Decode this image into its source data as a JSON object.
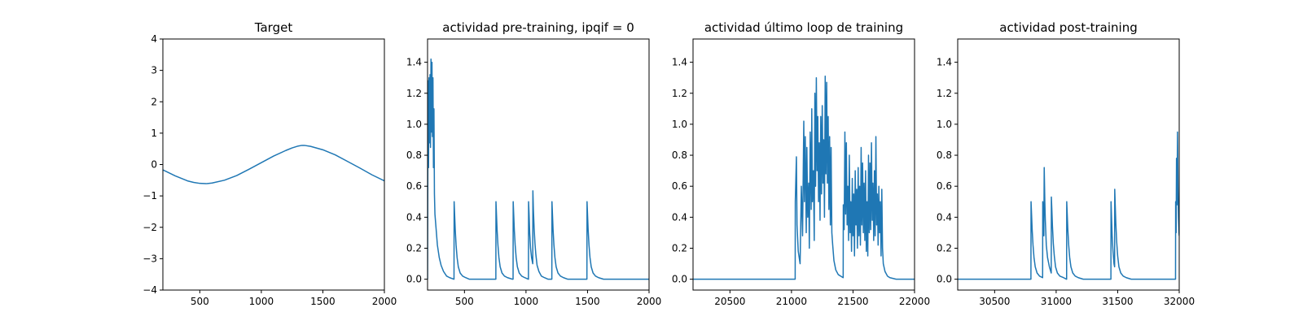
{
  "chart_data": [
    {
      "type": "line",
      "title": "Target",
      "xlim": [
        200,
        2000
      ],
      "ylim": [
        -4,
        4
      ],
      "xticks": [
        500,
        1000,
        1500,
        2000
      ],
      "xtick_labels": [
        "500",
        "1000",
        "1500",
        "2000"
      ],
      "yticks": [
        -4,
        -3,
        -2,
        -1,
        0,
        1,
        2,
        3,
        4
      ],
      "ytick_labels": [
        "−4",
        "−3",
        "−2",
        "−1",
        "0",
        "1",
        "2",
        "3",
        "4"
      ],
      "grid": false,
      "series": [
        {
          "color": "#1f77b4",
          "x": [
            200,
            300,
            400,
            450,
            500,
            550,
            600,
            700,
            800,
            900,
            1000,
            1100,
            1200,
            1250,
            1300,
            1330,
            1350,
            1400,
            1500,
            1600,
            1700,
            1800,
            1900,
            2000
          ],
          "y": [
            -0.17,
            -0.36,
            -0.52,
            -0.57,
            -0.6,
            -0.61,
            -0.59,
            -0.5,
            -0.35,
            -0.15,
            0.06,
            0.27,
            0.45,
            0.53,
            0.59,
            0.61,
            0.61,
            0.58,
            0.47,
            0.31,
            0.1,
            -0.11,
            -0.33,
            -0.52
          ]
        }
      ]
    },
    {
      "type": "line",
      "title": "actividad pre-training, ipqif = 0",
      "xlim": [
        200,
        2000
      ],
      "ylim": [
        -0.07,
        1.55
      ],
      "xticks": [
        500,
        1000,
        1500,
        2000
      ],
      "xtick_labels": [
        "500",
        "1000",
        "1500",
        "2000"
      ],
      "yticks": [
        0,
        0.2,
        0.4,
        0.6,
        0.8,
        1.0,
        1.2,
        1.4
      ],
      "ytick_labels": [
        "0.0",
        "0.2",
        "0.4",
        "0.6",
        "0.8",
        "1.0",
        "1.2",
        "1.4"
      ],
      "grid": false,
      "series": [
        {
          "color": "#1f77b4",
          "x": [
            200,
            204,
            208,
            212,
            216,
            220,
            224,
            228,
            232,
            236,
            240,
            244,
            248,
            252,
            256,
            260,
            270,
            280,
            295,
            310,
            330,
            355,
            380,
            415,
            416,
            420,
            425,
            432,
            440,
            450,
            465,
            485,
            510,
            540,
            580,
            640,
            700,
            755,
            756,
            760,
            765,
            772,
            780,
            790,
            805,
            825,
            850,
            890,
            895,
            896,
            900,
            905,
            912,
            920,
            930,
            945,
            965,
            990,
            1020,
            1021,
            1025,
            1030,
            1037,
            1045,
            1055,
            1056,
            1060,
            1066,
            1073,
            1080,
            1090,
            1105,
            1125,
            1150,
            1180,
            1210,
            1211,
            1215,
            1220,
            1227,
            1235,
            1245,
            1260,
            1280,
            1305,
            1340,
            1400,
            1495,
            1496,
            1500,
            1505,
            1512,
            1520,
            1530,
            1545,
            1565,
            1590,
            1630,
            1700,
            1800,
            1900,
            2000
          ],
          "y": [
            0.0,
            1.28,
            0.72,
            1.3,
            0.88,
            1.32,
            0.85,
            1.42,
            0.95,
            1.4,
            0.92,
            1.3,
            0.72,
            1.1,
            0.55,
            0.42,
            0.32,
            0.22,
            0.14,
            0.09,
            0.05,
            0.02,
            0.01,
            0.0,
            0.5,
            0.42,
            0.32,
            0.22,
            0.14,
            0.08,
            0.04,
            0.02,
            0.01,
            0.0,
            0.0,
            0.0,
            0.0,
            0.0,
            0.5,
            0.42,
            0.32,
            0.22,
            0.14,
            0.08,
            0.04,
            0.02,
            0.01,
            0.0,
            0.0,
            0.5,
            0.42,
            0.32,
            0.22,
            0.14,
            0.08,
            0.04,
            0.02,
            0.01,
            0.0,
            0.5,
            0.42,
            0.3,
            0.2,
            0.14,
            0.1,
            0.57,
            0.45,
            0.33,
            0.23,
            0.16,
            0.09,
            0.05,
            0.02,
            0.01,
            0.0,
            0.0,
            0.5,
            0.42,
            0.32,
            0.22,
            0.14,
            0.08,
            0.04,
            0.02,
            0.01,
            0.0,
            0.0,
            0.0,
            0.5,
            0.42,
            0.32,
            0.22,
            0.14,
            0.08,
            0.04,
            0.02,
            0.01,
            0.0,
            0.0,
            0.0,
            0.0,
            0.0
          ]
        }
      ]
    },
    {
      "type": "line",
      "title": "actividad último loop de training",
      "xlim": [
        20200,
        22000
      ],
      "ylim": [
        -0.07,
        1.55
      ],
      "xticks": [
        20500,
        21000,
        21500,
        22000
      ],
      "xtick_labels": [
        "20500",
        "21000",
        "21500",
        "22000"
      ],
      "yticks": [
        0,
        0.2,
        0.4,
        0.6,
        0.8,
        1.0,
        1.2,
        1.4
      ],
      "ytick_labels": [
        "0.0",
        "0.2",
        "0.4",
        "0.6",
        "0.8",
        "1.0",
        "1.2",
        "1.4"
      ],
      "grid": false,
      "series": [
        {
          "color": "#1f77b4",
          "x": [
            20200,
            21030,
            21031,
            21040,
            21045,
            21055,
            21070,
            21080,
            21090,
            21100,
            21105,
            21112,
            21120,
            21125,
            21132,
            21140,
            21145,
            21152,
            21160,
            21165,
            21170,
            21178,
            21185,
            21190,
            21196,
            21202,
            21208,
            21214,
            21220,
            21226,
            21232,
            21238,
            21244,
            21250,
            21256,
            21262,
            21268,
            21274,
            21280,
            21286,
            21292,
            21298,
            21304,
            21310,
            21316,
            21322,
            21328,
            21335,
            21345,
            21360,
            21380,
            21400,
            21420,
            21421,
            21428,
            21434,
            21440,
            21446,
            21452,
            21458,
            21464,
            21470,
            21476,
            21482,
            21488,
            21494,
            21500,
            21506,
            21512,
            21518,
            21524,
            21530,
            21536,
            21542,
            21548,
            21554,
            21560,
            21566,
            21572,
            21578,
            21584,
            21590,
            21596,
            21602,
            21608,
            21614,
            21620,
            21626,
            21632,
            21638,
            21644,
            21650,
            21656,
            21662,
            21668,
            21674,
            21680,
            21686,
            21692,
            21698,
            21704,
            21710,
            21716,
            21722,
            21728,
            21734,
            21740,
            21746,
            21760,
            21780,
            21800,
            21850,
            21900,
            22000
          ],
          "y": [
            0.0,
            0.0,
            0.5,
            0.79,
            0.35,
            0.18,
            0.1,
            0.6,
            0.28,
            1.02,
            0.5,
            0.92,
            0.3,
            0.85,
            0.4,
            0.62,
            0.2,
            0.95,
            0.45,
            1.1,
            0.5,
            0.7,
            0.25,
            1.2,
            0.6,
            1.3,
            0.7,
            1.05,
            0.5,
            0.88,
            0.38,
            1.05,
            0.55,
            1.12,
            0.62,
            0.9,
            0.4,
            1.31,
            0.68,
            1.27,
            0.62,
            1.05,
            0.45,
            0.92,
            0.35,
            0.85,
            0.3,
            0.22,
            0.12,
            0.06,
            0.03,
            0.02,
            0.01,
            0.48,
            0.32,
            0.95,
            0.42,
            0.88,
            0.35,
            0.6,
            0.25,
            0.8,
            0.3,
            0.5,
            0.18,
            0.65,
            0.28,
            0.55,
            0.15,
            0.7,
            0.35,
            0.58,
            0.2,
            0.72,
            0.28,
            0.6,
            0.22,
            0.85,
            0.35,
            0.75,
            0.3,
            0.62,
            0.25,
            0.7,
            0.18,
            0.5,
            0.15,
            0.8,
            0.3,
            0.75,
            0.32,
            0.88,
            0.38,
            0.62,
            0.25,
            0.7,
            0.28,
            0.92,
            0.35,
            0.55,
            0.22,
            0.6,
            0.3,
            0.5,
            0.15,
            0.58,
            0.2,
            0.1,
            0.05,
            0.02,
            0.01,
            0.0,
            0.0,
            0.0
          ]
        }
      ]
    },
    {
      "type": "line",
      "title": "actividad post-training",
      "xlim": [
        30200,
        32000
      ],
      "ylim": [
        -0.07,
        1.55
      ],
      "xticks": [
        30500,
        31000,
        31500,
        32000
      ],
      "xtick_labels": [
        "30500",
        "31000",
        "31500",
        "32000"
      ],
      "yticks": [
        0,
        0.2,
        0.4,
        0.6,
        0.8,
        1.0,
        1.2,
        1.4
      ],
      "ytick_labels": [
        "0.0",
        "0.2",
        "0.4",
        "0.6",
        "0.8",
        "1.0",
        "1.2",
        "1.4"
      ],
      "grid": false,
      "series": [
        {
          "color": "#1f77b4",
          "x": [
            30200,
            30795,
            30796,
            30800,
            30805,
            30812,
            30820,
            30830,
            30845,
            30865,
            30890,
            30891,
            30895,
            30900,
            30903,
            30908,
            30912,
            30916,
            30920,
            30930,
            30945,
            30960,
            30961,
            30965,
            30970,
            30977,
            30985,
            30995,
            31010,
            31030,
            31060,
            31085,
            31086,
            31090,
            31095,
            31102,
            31110,
            31120,
            31135,
            31155,
            31180,
            31220,
            31300,
            31445,
            31446,
            31450,
            31455,
            31462,
            31470,
            31475,
            31476,
            31480,
            31485,
            31492,
            31500,
            31510,
            31525,
            31545,
            31570,
            31610,
            31700,
            31800,
            31900,
            31970,
            31971,
            31975,
            31978,
            31982,
            31986,
            31990,
            31994,
            31998,
            32000
          ],
          "y": [
            0.0,
            0.0,
            0.5,
            0.42,
            0.32,
            0.22,
            0.14,
            0.08,
            0.04,
            0.02,
            0.01,
            0.5,
            0.4,
            0.28,
            0.72,
            0.5,
            0.38,
            0.3,
            0.22,
            0.14,
            0.08,
            0.04,
            0.53,
            0.45,
            0.34,
            0.23,
            0.15,
            0.08,
            0.04,
            0.02,
            0.01,
            0.0,
            0.5,
            0.42,
            0.32,
            0.22,
            0.14,
            0.08,
            0.04,
            0.02,
            0.01,
            0.0,
            0.0,
            0.0,
            0.5,
            0.4,
            0.28,
            0.18,
            0.1,
            0.08,
            0.58,
            0.48,
            0.36,
            0.24,
            0.15,
            0.08,
            0.04,
            0.02,
            0.01,
            0.0,
            0.0,
            0.0,
            0.0,
            0.0,
            0.5,
            0.3,
            0.78,
            0.48,
            0.95,
            0.6,
            0.4,
            0.3,
            0.28
          ]
        }
      ]
    }
  ]
}
